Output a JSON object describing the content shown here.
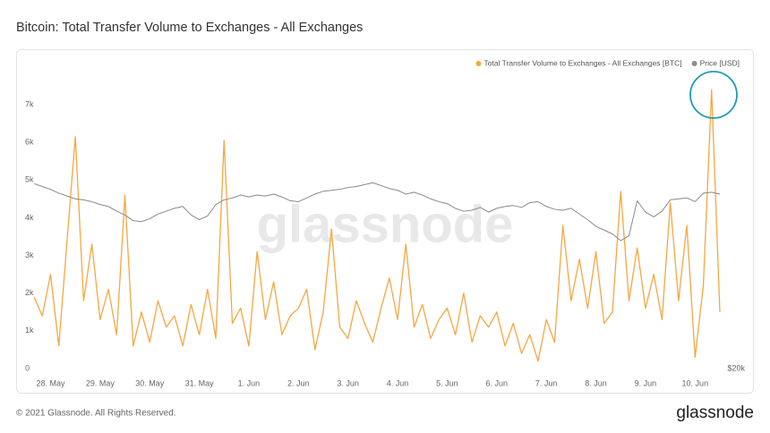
{
  "chart_data": {
    "type": "line",
    "title": "Bitcoin: Total Transfer Volume to Exchanges - All Exchanges",
    "watermark": "glassnode",
    "footer": "© 2021 Glassnode. All Rights Reserved.",
    "logo": "glassnode",
    "categories": [
      null,
      null,
      "28. May",
      null,
      null,
      null,
      null,
      null,
      "29. May",
      null,
      null,
      null,
      null,
      null,
      "30. May",
      null,
      null,
      null,
      null,
      null,
      "31. May",
      null,
      null,
      null,
      null,
      null,
      "1. Jun",
      null,
      null,
      null,
      null,
      null,
      "2. Jun",
      null,
      null,
      null,
      null,
      null,
      "3. Jun",
      null,
      null,
      null,
      null,
      null,
      "4. Jun",
      null,
      null,
      null,
      null,
      null,
      "5. Jun",
      null,
      null,
      null,
      null,
      null,
      "6. Jun",
      null,
      null,
      null,
      null,
      null,
      "7. Jun",
      null,
      null,
      null,
      null,
      null,
      "8. Jun",
      null,
      null,
      null,
      null,
      null,
      "9. Jun",
      null,
      null,
      null,
      null,
      null,
      "10. Jun",
      null,
      null,
      null
    ],
    "series": [
      {
        "name": "Total Transfer Volume to Exchanges - All Exchanges [BTC]",
        "color": "#f5a742",
        "values": [
          1900,
          1400,
          2500,
          600,
          3400,
          6150,
          1800,
          3300,
          1300,
          2100,
          900,
          4600,
          600,
          1500,
          700,
          1800,
          1100,
          1400,
          600,
          1700,
          900,
          2100,
          800,
          6050,
          1200,
          1600,
          600,
          3100,
          1300,
          2300,
          900,
          1400,
          1600,
          2100,
          500,
          1500,
          3700,
          1100,
          800,
          1800,
          1200,
          700,
          1600,
          2400,
          1300,
          3300,
          1100,
          1700,
          800,
          1300,
          1600,
          900,
          2000,
          700,
          1400,
          1100,
          1500,
          600,
          1200,
          400,
          900,
          200,
          1300,
          700,
          3800,
          1800,
          2900,
          1600,
          3100,
          1200,
          1500,
          4700,
          1800,
          3200,
          1600,
          2500,
          1300,
          4400,
          1800,
          3800,
          300,
          2200,
          7400,
          1500
        ]
      },
      {
        "name": "Price [USD]",
        "color": "#8a8a8a",
        "axis": "y2",
        "values": [
          39500,
          39200,
          38900,
          38500,
          38200,
          37900,
          37800,
          37600,
          37300,
          37100,
          36600,
          36200,
          35600,
          35500,
          35800,
          36300,
          36600,
          36900,
          37100,
          36200,
          35700,
          36100,
          37300,
          37800,
          38000,
          38300,
          38100,
          38300,
          38200,
          38400,
          38100,
          37700,
          37600,
          38000,
          38400,
          38700,
          38800,
          38900,
          39100,
          39200,
          39400,
          39600,
          39300,
          39000,
          38800,
          38400,
          38600,
          38300,
          37900,
          37600,
          37400,
          36900,
          36600,
          36700,
          37000,
          36500,
          36900,
          37100,
          37200,
          37000,
          37500,
          37600,
          37100,
          36800,
          36700,
          36900,
          36300,
          35700,
          35000,
          34600,
          34200,
          33500,
          34000,
          37700,
          36500,
          36000,
          36600,
          37800,
          37900,
          38000,
          37600,
          38500,
          38600,
          38400
        ]
      }
    ],
    "ylim": [
      0,
      8400
    ],
    "yticks": [
      0,
      {
        "value": 1000,
        "label": "1k"
      },
      {
        "value": 2000,
        "label": "2k"
      },
      {
        "value": 3000,
        "label": "3k"
      },
      {
        "value": 4000,
        "label": "4k"
      },
      {
        "value": 5000,
        "label": "5k"
      },
      {
        "value": 6000,
        "label": "6k"
      },
      {
        "value": 7000,
        "label": "7k"
      }
    ],
    "y2lim": [
      20000,
      53400
    ],
    "y2ticks": [
      {
        "value": 20000,
        "label": "$20k"
      }
    ],
    "grid": false,
    "legend": "top-right"
  }
}
